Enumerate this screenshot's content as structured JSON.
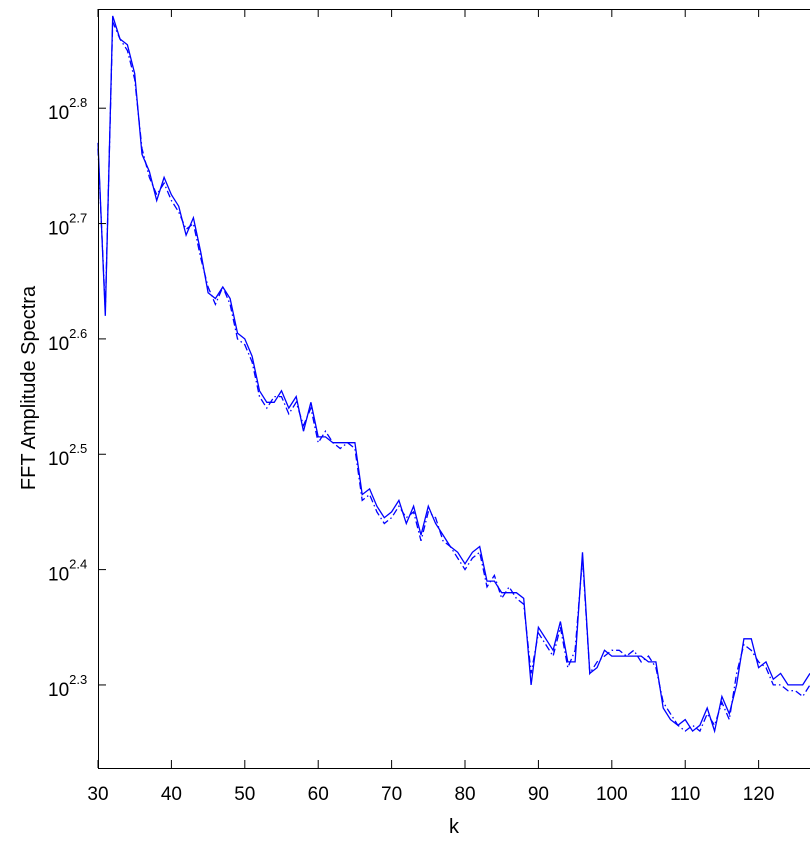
{
  "chart_data": {
    "type": "line",
    "title": "",
    "xlabel": "k",
    "ylabel": "FFT Amplitude Spectra",
    "y_scale": "log10",
    "xlim": [
      30,
      127
    ],
    "ylim_log10": [
      2.228,
      2.886
    ],
    "x_ticks": [
      30,
      40,
      50,
      60,
      70,
      80,
      90,
      100,
      110,
      120
    ],
    "y_ticks": [
      {
        "base": "10",
        "exp": "2.3",
        "value": 2.3
      },
      {
        "base": "10",
        "exp": "2.4",
        "value": 2.4
      },
      {
        "base": "10",
        "exp": "2.5",
        "value": 2.5
      },
      {
        "base": "10",
        "exp": "2.6",
        "value": 2.6
      },
      {
        "base": "10",
        "exp": "2.7",
        "value": 2.7
      },
      {
        "base": "10",
        "exp": "2.8",
        "value": 2.8
      }
    ],
    "grid": false,
    "legend": "none",
    "color": "#0000ff",
    "series": [
      {
        "style": "solid",
        "x": [
          30,
          31,
          32,
          33,
          34,
          35,
          36,
          37,
          38,
          39,
          40,
          41,
          42,
          43,
          44,
          45,
          46,
          47,
          48,
          49,
          50,
          51,
          52,
          53,
          54,
          55,
          56,
          57,
          58,
          59,
          60,
          61,
          62,
          63,
          64,
          65,
          66,
          67,
          68,
          69,
          70,
          71,
          72,
          73,
          74,
          75,
          76,
          77,
          78,
          79,
          80,
          81,
          82,
          83,
          84,
          85,
          86,
          87,
          88,
          89,
          90,
          91,
          92,
          93,
          94,
          95,
          96,
          97,
          98,
          99,
          100,
          101,
          102,
          103,
          104,
          105,
          106,
          107,
          108,
          109,
          110,
          111,
          112,
          113,
          114,
          115,
          116,
          117,
          118,
          119,
          120,
          121,
          122,
          123,
          124,
          125,
          126,
          127
        ],
        "y": [
          2.77,
          2.62,
          2.88,
          2.86,
          2.855,
          2.83,
          2.76,
          2.745,
          2.72,
          2.74,
          2.725,
          2.715,
          2.69,
          2.705,
          2.675,
          2.64,
          2.635,
          2.645,
          2.635,
          2.605,
          2.6,
          2.585,
          2.555,
          2.545,
          2.545,
          2.555,
          2.54,
          2.55,
          2.52,
          2.545,
          2.515,
          2.515,
          2.51,
          2.51,
          2.51,
          2.51,
          2.465,
          2.47,
          2.455,
          2.445,
          2.45,
          2.46,
          2.44,
          2.455,
          2.43,
          2.455,
          2.44,
          2.43,
          2.42,
          2.415,
          2.405,
          2.415,
          2.42,
          2.39,
          2.39,
          2.38,
          2.38,
          2.38,
          2.375,
          2.3,
          2.35,
          2.34,
          2.33,
          2.355,
          2.32,
          2.32,
          2.415,
          2.31,
          2.315,
          2.33,
          2.325,
          2.325,
          2.325,
          2.325,
          2.325,
          2.32,
          2.32,
          2.28,
          2.27,
          2.265,
          2.27,
          2.26,
          2.265,
          2.28,
          2.26,
          2.29,
          2.275,
          2.3,
          2.34,
          2.34,
          2.315,
          2.32,
          2.305,
          2.31,
          2.3,
          2.3,
          2.3,
          2.31
        ]
      },
      {
        "style": "dashdot",
        "x": [
          30,
          31,
          32,
          33,
          34,
          35,
          36,
          37,
          38,
          39,
          40,
          41,
          42,
          43,
          44,
          45,
          46,
          47,
          48,
          49,
          50,
          51,
          52,
          53,
          54,
          55,
          56,
          57,
          58,
          59,
          60,
          61,
          62,
          63,
          64,
          65,
          66,
          67,
          68,
          69,
          70,
          71,
          72,
          73,
          74,
          75,
          76,
          77,
          78,
          79,
          80,
          81,
          82,
          83,
          84,
          85,
          86,
          87,
          88,
          89,
          90,
          91,
          92,
          93,
          94,
          95,
          96,
          97,
          98,
          99,
          100,
          101,
          102,
          103,
          104,
          105,
          106,
          107,
          108,
          109,
          110,
          111,
          112,
          113,
          114,
          115,
          116,
          117,
          118,
          119,
          120,
          121,
          122,
          123,
          124,
          125,
          126,
          127
        ],
        "y": [
          2.765,
          2.625,
          2.875,
          2.86,
          2.85,
          2.825,
          2.765,
          2.74,
          2.725,
          2.735,
          2.72,
          2.71,
          2.695,
          2.7,
          2.67,
          2.645,
          2.63,
          2.645,
          2.63,
          2.6,
          2.595,
          2.58,
          2.55,
          2.54,
          2.55,
          2.55,
          2.535,
          2.545,
          2.525,
          2.54,
          2.51,
          2.52,
          2.51,
          2.505,
          2.51,
          2.505,
          2.46,
          2.465,
          2.45,
          2.44,
          2.445,
          2.455,
          2.445,
          2.45,
          2.425,
          2.45,
          2.445,
          2.425,
          2.42,
          2.41,
          2.4,
          2.41,
          2.415,
          2.385,
          2.395,
          2.375,
          2.385,
          2.375,
          2.37,
          2.31,
          2.345,
          2.335,
          2.325,
          2.35,
          2.315,
          2.33,
          2.41,
          2.31,
          2.32,
          2.325,
          2.33,
          2.33,
          2.325,
          2.33,
          2.32,
          2.325,
          2.315,
          2.285,
          2.275,
          2.265,
          2.26,
          2.265,
          2.26,
          2.275,
          2.265,
          2.285,
          2.27,
          2.31,
          2.335,
          2.33,
          2.32,
          2.315,
          2.3,
          2.3,
          2.295,
          2.295,
          2.29,
          2.3
        ]
      }
    ]
  }
}
